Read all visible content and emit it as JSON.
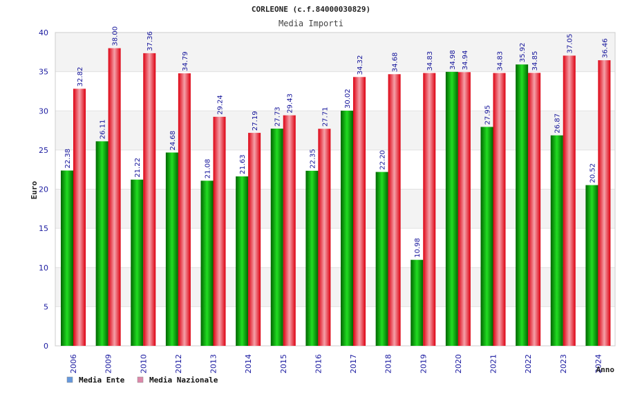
{
  "chart_data": {
    "type": "bar",
    "title": "CORLEONE (c.f.84000030829)",
    "subtitle": "Media Importi",
    "xlabel": "Anno",
    "ylabel": "Euro",
    "ylim": [
      0,
      40
    ],
    "yticks": [
      "0",
      "5",
      "10",
      "15",
      "20",
      "25",
      "30",
      "35",
      "40"
    ],
    "grid": true,
    "legend_position": "bottom-left",
    "categories": [
      "2006",
      "2009",
      "2010",
      "2012",
      "2013",
      "2014",
      "2015",
      "2016",
      "2017",
      "2018",
      "2019",
      "2020",
      "2021",
      "2022",
      "2023",
      "2024"
    ],
    "series": [
      {
        "name": "Media Ente",
        "color": "#00aa00",
        "legend_color": "#6699dd",
        "values": [
          22.38,
          26.11,
          21.22,
          24.68,
          21.08,
          21.63,
          27.73,
          22.35,
          30.02,
          22.2,
          10.98,
          34.98,
          27.95,
          35.92,
          26.87,
          20.52
        ],
        "labels": [
          "22.38",
          "26.11",
          "21.22",
          "24.68",
          "21.08",
          "21.63",
          "27.73",
          "22.35",
          "30.02",
          "22.20",
          "10.98",
          "34.98",
          "27.95",
          "35.92",
          "26.87",
          "20.52"
        ]
      },
      {
        "name": "Media Nazionale",
        "color": "#ee1122",
        "legend_color": "#dd88aa",
        "values": [
          32.82,
          38.0,
          37.36,
          34.79,
          29.24,
          27.19,
          29.43,
          27.71,
          34.32,
          34.68,
          34.83,
          34.94,
          34.83,
          34.85,
          37.05,
          36.46
        ],
        "labels": [
          "32.82",
          "38.00",
          "37.36",
          "34.79",
          "29.24",
          "27.19",
          "29.43",
          "27.71",
          "34.32",
          "34.68",
          "34.83",
          "34.94",
          "34.83",
          "34.85",
          "37.05",
          "36.46"
        ]
      }
    ]
  }
}
